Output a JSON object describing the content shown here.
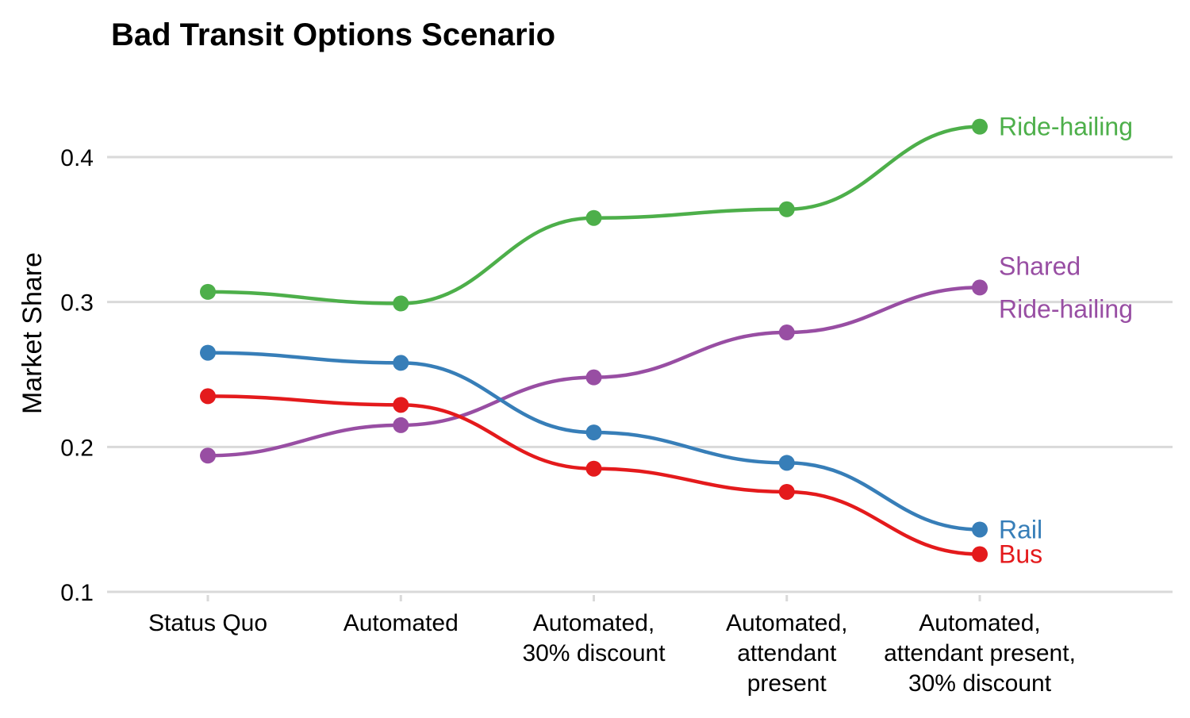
{
  "chart_data": {
    "type": "line",
    "title": "Bad Transit Options Scenario",
    "xlabel": "",
    "ylabel": "Market Share",
    "ylim": [
      0.1,
      0.43
    ],
    "yticks": [
      0.1,
      0.2,
      0.3,
      0.4
    ],
    "ytick_labels": [
      "0.1",
      "0.2",
      "0.3",
      "0.4"
    ],
    "grid": "horizontal",
    "legend": "direct labels at right end of lines",
    "categories": [
      [
        "Status Quo"
      ],
      [
        "Automated"
      ],
      [
        "Automated,",
        "30% discount"
      ],
      [
        "Automated,",
        "attendant",
        "present"
      ],
      [
        "Automated,",
        "attendant present,",
        "30% discount"
      ]
    ],
    "series": [
      {
        "key": "ride_hailing",
        "name": "Ride-hailing",
        "label_lines": [
          "Ride-hailing"
        ],
        "color": "#4daf4a",
        "values": [
          0.307,
          0.299,
          0.358,
          0.364,
          0.421
        ]
      },
      {
        "key": "shared",
        "name": "Shared Ride-hailing",
        "label_lines": [
          "Shared",
          "Ride-hailing"
        ],
        "color": "#984ea3",
        "values": [
          0.194,
          0.215,
          0.248,
          0.279,
          0.31
        ]
      },
      {
        "key": "rail",
        "name": "Rail",
        "label_lines": [
          "Rail"
        ],
        "color": "#377eb8",
        "values": [
          0.265,
          0.258,
          0.21,
          0.189,
          0.143
        ]
      },
      {
        "key": "bus",
        "name": "Bus",
        "label_lines": [
          "Bus"
        ],
        "color": "#e41a1c",
        "values": [
          0.235,
          0.229,
          0.185,
          0.169,
          0.126
        ]
      }
    ]
  }
}
